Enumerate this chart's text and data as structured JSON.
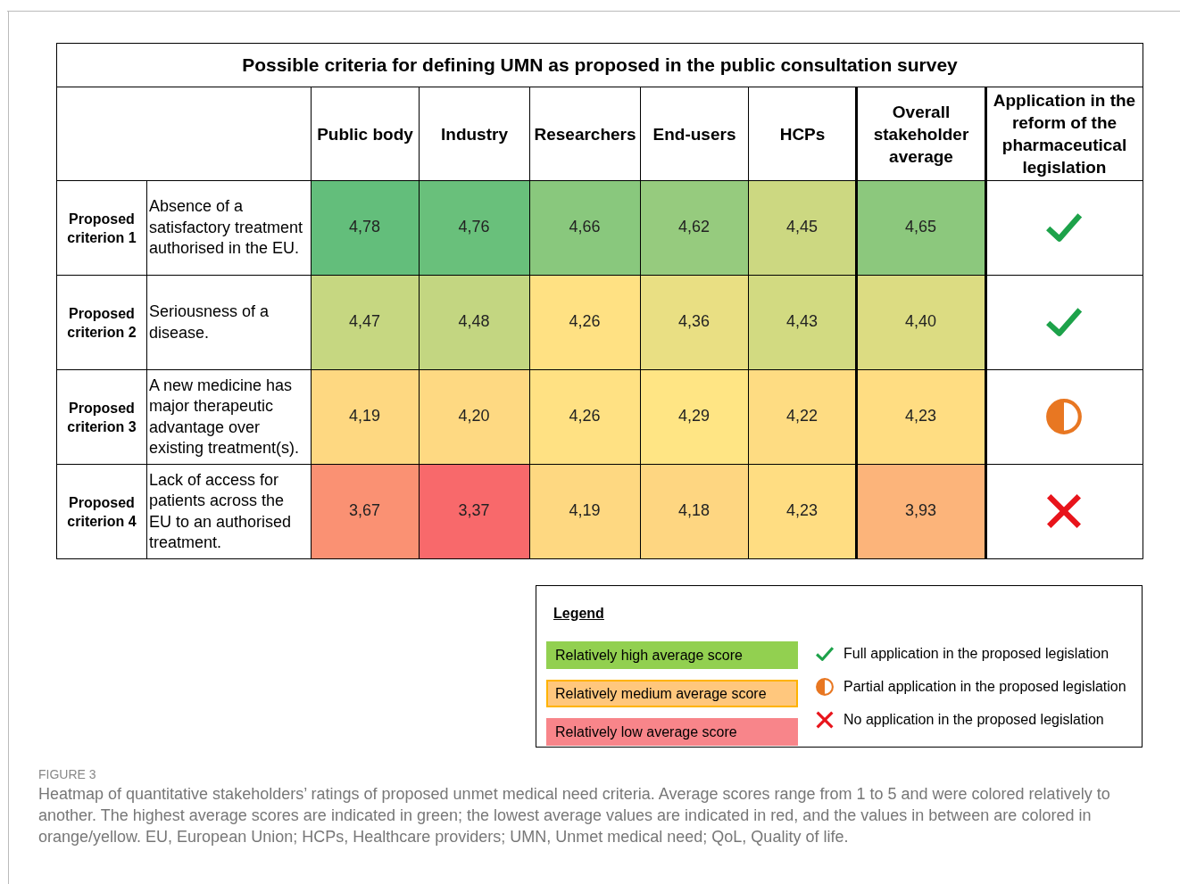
{
  "chart_data": {
    "type": "heatmap",
    "title": "Possible criteria for defining UMN as proposed in the public consultation survey",
    "categories": [
      "Public body",
      "Industry",
      "Researchers",
      "End-users",
      "HCPs",
      "Overall stakeholder average",
      "Application in the reform of the pharmaceutical legislation"
    ],
    "y_categories": [
      "Absence of a satisfactory treatment authorised in the EU.",
      "Seriousness of a disease.",
      "A new medicine has major therapeutic advantage over existing treatment(s).",
      "Lack of access for patients across the EU to an authorised treatment."
    ],
    "y2_categories": [
      "Proposed criterion 1",
      "Proposed criterion 2",
      "Proposed criterion 3",
      "Proposed criterion 4"
    ],
    "cells": [
      [
        4.78,
        4.76,
        4.66,
        4.62,
        4.45,
        4.65,
        null
      ],
      [
        4.47,
        4.48,
        4.26,
        4.36,
        4.43,
        4.4,
        null
      ],
      [
        4.19,
        4.2,
        4.26,
        4.29,
        4.22,
        4.23,
        null
      ],
      [
        3.67,
        3.37,
        4.19,
        4.18,
        4.23,
        3.93,
        null
      ]
    ],
    "cell_labels": [
      [
        "4,78",
        "4,76",
        "4,66",
        "4,62",
        "4,45",
        "4,65",
        null
      ],
      [
        "4,47",
        "4,48",
        "4,26",
        "4,36",
        "4,43",
        "4,40",
        null
      ],
      [
        "4,19",
        "4,20",
        "4,26",
        "4,29",
        "4,22",
        "4,23",
        null
      ],
      [
        "3,67",
        "3,37",
        "4,19",
        "4,18",
        "4,23",
        "3,93",
        null
      ]
    ],
    "annotations": [
      "Legend",
      "Relatively high average score",
      "Relatively medium average score",
      "Relatively low average score",
      "Full application in the proposed legislation",
      "Partial application in the proposed legislation",
      "No application in the proposed legislation",
      "FIGURE 3",
      "Heatmap of quantitative stakeholders’ ratings of proposed unmet medical need criteria. Average scores range from 1 to 5 and were colored relatively to another. The highest average scores are indicated in green; the lowest average values are indicated in red, and the values in between are colored in orange/yellow. EU, European Union; HCPs, Healthcare providers; UMN, Unmet medical need; QoL, Quality of life."
    ]
  }
}
